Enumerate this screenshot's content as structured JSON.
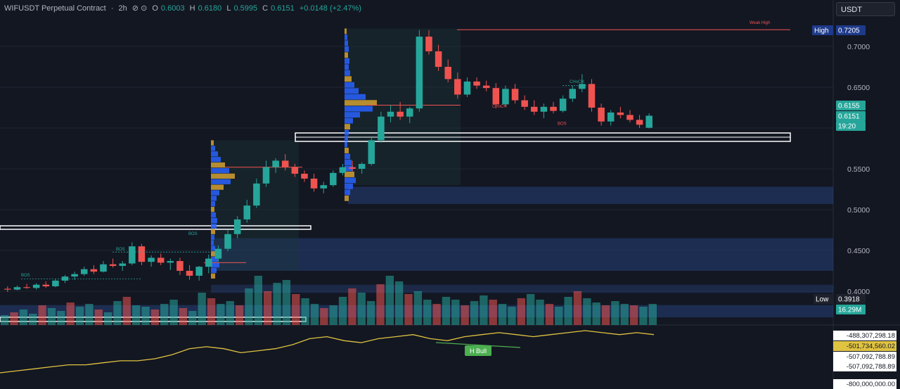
{
  "header": {
    "symbol": "WIFUSDT Perpetual Contract",
    "interval": "2h",
    "o_label": "O",
    "o_value": "0.6003",
    "h_label": "H",
    "h_value": "0.6180",
    "l_label": "L",
    "l_value": "0.5995",
    "c_label": "C",
    "c_value": "0.6151",
    "change": "+0.0148 (+2.47%)"
  },
  "toolbar": {
    "unit_label": "USDT"
  },
  "price_scale": {
    "ticks": [
      "0.7000",
      "0.6500",
      "0.5500",
      "0.5000",
      "0.4500",
      "0.4000"
    ],
    "high_label": "High",
    "high_value": "0.7205",
    "low_label": "Low",
    "low_value": "0.3918",
    "last_price": "0.6155",
    "current_price": "0.6151",
    "countdown": "19:20",
    "volume_value": "16.29M"
  },
  "annotations": {
    "weak_high": "Weak High",
    "choch_1": "CHoCH",
    "choch_2": "CHoCH",
    "bos_1": "BOS",
    "bos_2": "BOS",
    "bos_3": "BOS",
    "bos_4": "BOS",
    "bull_label": "H Bull"
  },
  "indicator_scale": [
    "-488,307,298.18",
    "-501,734,560.02",
    "-507,092,788.89",
    "-507,092,788.89",
    "-800,000,000.00"
  ],
  "colors": {
    "up": "#26a69a",
    "down": "#ef5350",
    "bg": "#131722",
    "zone": "#2a4a8c",
    "volume_profile": "#2962ff",
    "volume_poc": "#d4a033",
    "indicator": "#e0c341",
    "bull": "#4caf50"
  },
  "chart_data": {
    "type": "candlestick",
    "price_range": [
      0.385,
      0.725
    ],
    "ohlc_approx": [
      {
        "o": 0.403,
        "h": 0.406,
        "l": 0.399,
        "c": 0.402
      },
      {
        "o": 0.402,
        "h": 0.407,
        "l": 0.401,
        "c": 0.405
      },
      {
        "o": 0.405,
        "h": 0.409,
        "l": 0.403,
        "c": 0.404
      },
      {
        "o": 0.404,
        "h": 0.41,
        "l": 0.402,
        "c": 0.408
      },
      {
        "o": 0.408,
        "h": 0.412,
        "l": 0.404,
        "c": 0.406
      },
      {
        "o": 0.406,
        "h": 0.415,
        "l": 0.405,
        "c": 0.413
      },
      {
        "o": 0.413,
        "h": 0.42,
        "l": 0.41,
        "c": 0.418
      },
      {
        "o": 0.418,
        "h": 0.424,
        "l": 0.414,
        "c": 0.421
      },
      {
        "o": 0.421,
        "h": 0.43,
        "l": 0.419,
        "c": 0.427
      },
      {
        "o": 0.427,
        "h": 0.432,
        "l": 0.421,
        "c": 0.424
      },
      {
        "o": 0.424,
        "h": 0.437,
        "l": 0.423,
        "c": 0.433
      },
      {
        "o": 0.433,
        "h": 0.44,
        "l": 0.429,
        "c": 0.431
      },
      {
        "o": 0.431,
        "h": 0.437,
        "l": 0.425,
        "c": 0.434
      },
      {
        "o": 0.434,
        "h": 0.46,
        "l": 0.432,
        "c": 0.455
      },
      {
        "o": 0.455,
        "h": 0.458,
        "l": 0.432,
        "c": 0.436
      },
      {
        "o": 0.436,
        "h": 0.444,
        "l": 0.43,
        "c": 0.441
      },
      {
        "o": 0.441,
        "h": 0.446,
        "l": 0.432,
        "c": 0.435
      },
      {
        "o": 0.435,
        "h": 0.44,
        "l": 0.426,
        "c": 0.437
      },
      {
        "o": 0.437,
        "h": 0.441,
        "l": 0.42,
        "c": 0.425
      },
      {
        "o": 0.425,
        "h": 0.432,
        "l": 0.414,
        "c": 0.419
      },
      {
        "o": 0.419,
        "h": 0.431,
        "l": 0.413,
        "c": 0.43
      },
      {
        "o": 0.43,
        "h": 0.445,
        "l": 0.422,
        "c": 0.44
      },
      {
        "o": 0.44,
        "h": 0.456,
        "l": 0.436,
        "c": 0.452
      },
      {
        "o": 0.452,
        "h": 0.475,
        "l": 0.449,
        "c": 0.47
      },
      {
        "o": 0.47,
        "h": 0.492,
        "l": 0.465,
        "c": 0.488
      },
      {
        "o": 0.488,
        "h": 0.512,
        "l": 0.484,
        "c": 0.505
      },
      {
        "o": 0.505,
        "h": 0.538,
        "l": 0.502,
        "c": 0.532
      },
      {
        "o": 0.532,
        "h": 0.56,
        "l": 0.528,
        "c": 0.552
      },
      {
        "o": 0.552,
        "h": 0.563,
        "l": 0.545,
        "c": 0.56
      },
      {
        "o": 0.56,
        "h": 0.568,
        "l": 0.548,
        "c": 0.552
      },
      {
        "o": 0.552,
        "h": 0.556,
        "l": 0.54,
        "c": 0.544
      },
      {
        "o": 0.544,
        "h": 0.548,
        "l": 0.534,
        "c": 0.538
      },
      {
        "o": 0.538,
        "h": 0.544,
        "l": 0.522,
        "c": 0.526
      },
      {
        "o": 0.526,
        "h": 0.534,
        "l": 0.52,
        "c": 0.53
      },
      {
        "o": 0.53,
        "h": 0.548,
        "l": 0.528,
        "c": 0.545
      },
      {
        "o": 0.545,
        "h": 0.556,
        "l": 0.542,
        "c": 0.552
      },
      {
        "o": 0.552,
        "h": 0.56,
        "l": 0.547,
        "c": 0.55
      },
      {
        "o": 0.55,
        "h": 0.558,
        "l": 0.544,
        "c": 0.556
      },
      {
        "o": 0.556,
        "h": 0.59,
        "l": 0.554,
        "c": 0.585
      },
      {
        "o": 0.585,
        "h": 0.62,
        "l": 0.582,
        "c": 0.614
      },
      {
        "o": 0.614,
        "h": 0.628,
        "l": 0.607,
        "c": 0.62
      },
      {
        "o": 0.62,
        "h": 0.632,
        "l": 0.61,
        "c": 0.614
      },
      {
        "o": 0.614,
        "h": 0.626,
        "l": 0.606,
        "c": 0.624
      },
      {
        "o": 0.624,
        "h": 0.72,
        "l": 0.62,
        "c": 0.712
      },
      {
        "o": 0.712,
        "h": 0.72,
        "l": 0.69,
        "c": 0.694
      },
      {
        "o": 0.694,
        "h": 0.702,
        "l": 0.67,
        "c": 0.675
      },
      {
        "o": 0.675,
        "h": 0.684,
        "l": 0.656,
        "c": 0.66
      },
      {
        "o": 0.66,
        "h": 0.668,
        "l": 0.636,
        "c": 0.641
      },
      {
        "o": 0.641,
        "h": 0.662,
        "l": 0.638,
        "c": 0.657
      },
      {
        "o": 0.657,
        "h": 0.662,
        "l": 0.648,
        "c": 0.652
      },
      {
        "o": 0.652,
        "h": 0.658,
        "l": 0.645,
        "c": 0.649
      },
      {
        "o": 0.649,
        "h": 0.655,
        "l": 0.624,
        "c": 0.629
      },
      {
        "o": 0.629,
        "h": 0.652,
        "l": 0.626,
        "c": 0.648
      },
      {
        "o": 0.648,
        "h": 0.654,
        "l": 0.63,
        "c": 0.634
      },
      {
        "o": 0.634,
        "h": 0.64,
        "l": 0.622,
        "c": 0.626
      },
      {
        "o": 0.626,
        "h": 0.634,
        "l": 0.616,
        "c": 0.62
      },
      {
        "o": 0.62,
        "h": 0.63,
        "l": 0.612,
        "c": 0.626
      },
      {
        "o": 0.626,
        "h": 0.632,
        "l": 0.618,
        "c": 0.621
      },
      {
        "o": 0.621,
        "h": 0.64,
        "l": 0.619,
        "c": 0.636
      },
      {
        "o": 0.636,
        "h": 0.652,
        "l": 0.632,
        "c": 0.648
      },
      {
        "o": 0.648,
        "h": 0.666,
        "l": 0.644,
        "c": 0.654
      },
      {
        "o": 0.654,
        "h": 0.66,
        "l": 0.62,
        "c": 0.625
      },
      {
        "o": 0.625,
        "h": 0.63,
        "l": 0.603,
        "c": 0.608
      },
      {
        "o": 0.608,
        "h": 0.622,
        "l": 0.603,
        "c": 0.619
      },
      {
        "o": 0.619,
        "h": 0.626,
        "l": 0.612,
        "c": 0.616
      },
      {
        "o": 0.616,
        "h": 0.622,
        "l": 0.607,
        "c": 0.61
      },
      {
        "o": 0.61,
        "h": 0.616,
        "l": 0.6,
        "c": 0.604
      },
      {
        "o": 0.6003,
        "h": 0.618,
        "l": 0.5995,
        "c": 0.6151
      }
    ],
    "indicator_values": [
      -0.62,
      -0.61,
      -0.6,
      -0.59,
      -0.58,
      -0.58,
      -0.57,
      -0.56,
      -0.56,
      -0.55,
      -0.53,
      -0.5,
      -0.49,
      -0.5,
      -0.52,
      -0.51,
      -0.5,
      -0.48,
      -0.45,
      -0.44,
      -0.46,
      -0.47,
      -0.45,
      -0.44,
      -0.43,
      -0.45,
      -0.46,
      -0.44,
      -0.43,
      -0.42,
      -0.43,
      -0.44,
      -0.43,
      -0.42,
      -0.41,
      -0.42,
      -0.43,
      -0.42,
      -0.43
    ]
  }
}
